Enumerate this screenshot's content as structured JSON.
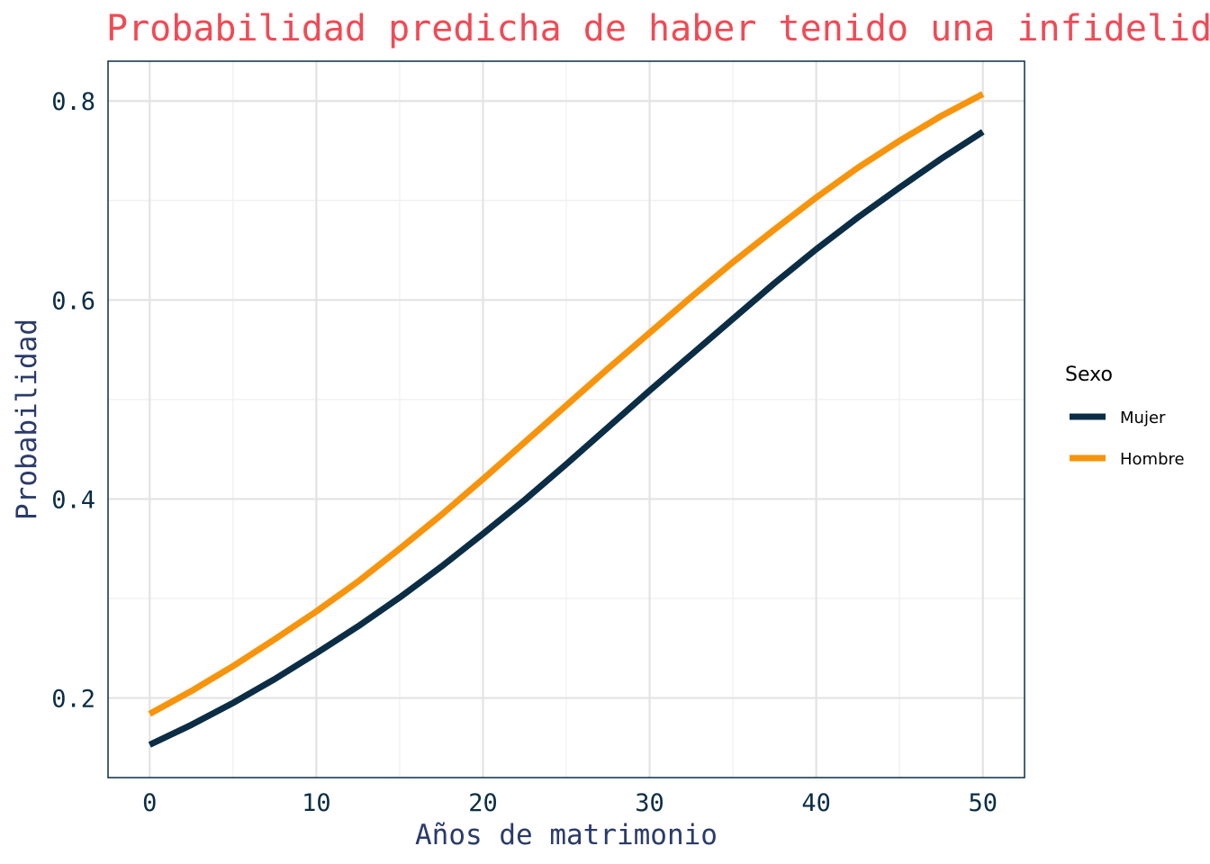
{
  "chart_data": {
    "type": "line",
    "title": "Probabilidad predicha de haber tenido una infidelidad",
    "xlabel": "Años de matrimonio",
    "ylabel": "Probabilidad",
    "xlim": [
      -2.5,
      52.5
    ],
    "ylim": [
      0.12,
      0.84
    ],
    "x_ticks": [
      0,
      10,
      20,
      30,
      40,
      50
    ],
    "x_tick_labels": [
      "0",
      "10",
      "20",
      "30",
      "40",
      "50"
    ],
    "y_ticks": [
      0.2,
      0.4,
      0.6,
      0.8
    ],
    "y_tick_labels": [
      "0.2",
      "0.4",
      "0.6",
      "0.8"
    ],
    "grid": true,
    "legend": {
      "title": "Sexo",
      "placement": "right"
    },
    "x": [
      0,
      2.5,
      5,
      7.5,
      10,
      12.5,
      15,
      17.5,
      20,
      22.5,
      25,
      27.5,
      30,
      32.5,
      35,
      37.5,
      40,
      42.5,
      45,
      47.5,
      50
    ],
    "series": [
      {
        "name": "Mujer",
        "color": "#0b2d45",
        "values": [
          0.153,
          0.173,
          0.195,
          0.219,
          0.245,
          0.272,
          0.301,
          0.332,
          0.365,
          0.399,
          0.435,
          0.472,
          0.509,
          0.545,
          0.581,
          0.617,
          0.651,
          0.683,
          0.713,
          0.742,
          0.769
        ]
      },
      {
        "name": "Hombre",
        "color": "#f7940c",
        "values": [
          0.184,
          0.207,
          0.232,
          0.259,
          0.287,
          0.317,
          0.35,
          0.384,
          0.42,
          0.457,
          0.494,
          0.531,
          0.567,
          0.603,
          0.638,
          0.671,
          0.703,
          0.733,
          0.76,
          0.785,
          0.807
        ]
      }
    ]
  },
  "colors": {
    "title": "#f04a55",
    "axis_label": "#2a3b6b",
    "tick_label": "#0b2d45",
    "panel_border": "#0b2d45",
    "grid_major": "#e3e3e3",
    "grid_minor": "#efefef"
  }
}
